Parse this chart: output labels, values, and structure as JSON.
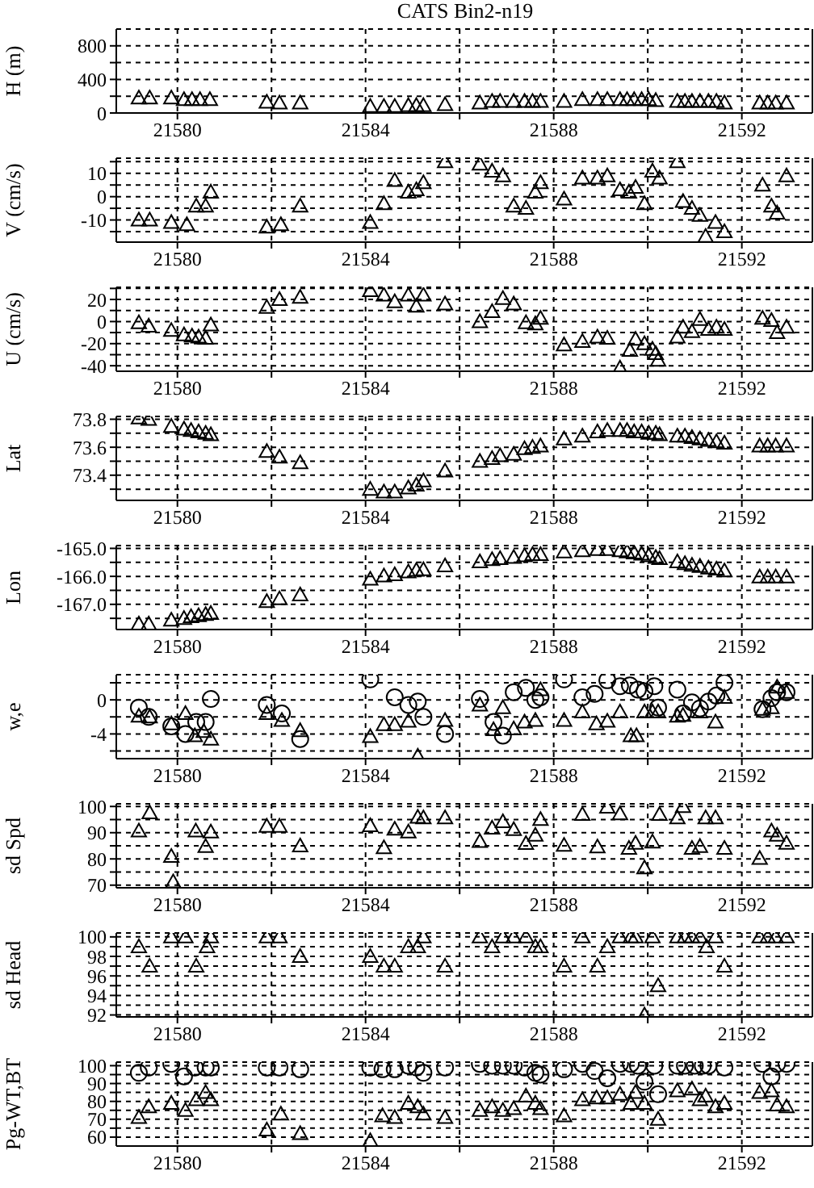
{
  "chart_data": [
    {
      "type": "scatter",
      "title": "CATS Bin2-n19",
      "ylabel": "H (m)",
      "xlim": [
        21578.7,
        21593.5
      ],
      "xticks": [
        21580,
        {
          "value": 21582,
          "label": null
        },
        21584,
        {
          "value": 21586,
          "label": null
        },
        21588,
        {
          "value": 21590,
          "label": null
        },
        21592
      ],
      "ylim": [
        0,
        1000
      ],
      "yticks": [
        0,
        {
          "value": 200,
          "label": null
        },
        400,
        {
          "value": 600,
          "label": null
        },
        800
      ],
      "grid": true,
      "marker": "triangle",
      "series": [
        {
          "color": "#000000",
          "x": [
            21579.18,
            21579.41,
            21579.87,
            21580.14,
            21580.31,
            21580.48,
            21580.69,
            21581.9,
            21582.17,
            21582.61,
            21584.1,
            21584.39,
            21584.62,
            21584.91,
            21585.08,
            21585.23,
            21585.69,
            21586.43,
            21586.69,
            21586.86,
            21587.15,
            21587.38,
            21587.55,
            21587.72,
            21588.22,
            21588.61,
            21588.93,
            21589.14,
            21589.41,
            21589.56,
            21589.71,
            21589.87,
            21590.02,
            21590.17,
            21590.63,
            21590.79,
            21590.94,
            21591.11,
            21591.29,
            21591.46,
            21591.63,
            21592.38,
            21592.55,
            21592.72,
            21592.95
          ],
          "values": [
            180,
            180,
            180,
            160,
            160,
            160,
            160,
            130,
            120,
            120,
            80,
            80,
            80,
            90,
            90,
            90,
            100,
            120,
            140,
            140,
            140,
            140,
            140,
            140,
            140,
            160,
            160,
            160,
            160,
            160,
            160,
            160,
            160,
            150,
            140,
            140,
            140,
            140,
            140,
            140,
            120,
            120,
            120,
            120,
            120
          ]
        }
      ]
    },
    {
      "type": "scatter",
      "ylabel": "V (cm/s)",
      "xlim": [
        21578.7,
        21593.5
      ],
      "xticks": [
        21580,
        {
          "value": 21582,
          "label": null
        },
        21584,
        {
          "value": 21586,
          "label": null
        },
        21588,
        {
          "value": 21590,
          "label": null
        },
        21592
      ],
      "ylim": [
        -19.5,
        16.5
      ],
      "yticks": [
        {
          "value": -15,
          "label": null
        },
        -10,
        {
          "value": -5,
          "label": null
        },
        0,
        {
          "value": 5,
          "label": null
        },
        10,
        {
          "value": 15,
          "label": null
        }
      ],
      "grid": true,
      "marker": "triangle",
      "series": [
        {
          "color": "#000000",
          "x": [
            21579.18,
            21579.41,
            21579.87,
            21580.2,
            21580.4,
            21580.6,
            21580.71,
            21581.9,
            21582.2,
            21582.61,
            21584.1,
            21584.39,
            21584.62,
            21584.91,
            21585.08,
            21585.23,
            21585.69,
            21586.43,
            21586.69,
            21586.92,
            21587.15,
            21587.41,
            21587.61,
            21587.72,
            21588.22,
            21588.61,
            21588.93,
            21589.14,
            21589.41,
            21589.6,
            21589.74,
            21589.93,
            21590.1,
            21590.25,
            21590.63,
            21590.75,
            21590.94,
            21591.11,
            21591.23,
            21591.44,
            21591.63,
            21592.44,
            21592.63,
            21592.75,
            21592.95
          ],
          "values": [
            -10,
            -10,
            -11,
            -12,
            -4,
            -4,
            2,
            -13,
            -12,
            -4,
            -11,
            -3,
            7,
            2,
            3,
            6,
            15,
            14,
            11,
            9,
            -4,
            -5,
            2,
            6,
            -1,
            8,
            8,
            9,
            3,
            2,
            4,
            -3,
            11,
            8,
            15,
            -2,
            -5,
            -8,
            -17,
            -11,
            -15,
            5,
            -4,
            -7,
            9
          ]
        }
      ]
    },
    {
      "type": "scatter",
      "ylabel": "U (cm/s)",
      "xlim": [
        21578.7,
        21593.5
      ],
      "xticks": [
        21580,
        {
          "value": 21582,
          "label": null
        },
        21584,
        {
          "value": 21586,
          "label": null
        },
        21588,
        {
          "value": 21590,
          "label": null
        },
        21592
      ],
      "ylim": [
        -45,
        31
      ],
      "yticks": [
        -40,
        {
          "value": -30,
          "label": null
        },
        -20,
        {
          "value": -10,
          "label": null
        },
        0,
        {
          "value": 10,
          "label": null
        },
        20,
        {
          "value": 30,
          "label": null
        }
      ],
      "grid": true,
      "marker": "triangle",
      "series": [
        {
          "color": "#000000",
          "x": [
            21579.18,
            21579.39,
            21579.87,
            21580.14,
            21580.31,
            21580.45,
            21580.6,
            21580.71,
            21581.9,
            21582.17,
            21582.61,
            21584.1,
            21584.39,
            21584.62,
            21584.91,
            21585.08,
            21585.23,
            21585.69,
            21586.43,
            21586.69,
            21586.92,
            21587.15,
            21587.41,
            21587.61,
            21587.72,
            21588.22,
            21588.61,
            21588.93,
            21589.14,
            21589.41,
            21589.62,
            21589.74,
            21589.93,
            21590.1,
            21590.17,
            21590.22,
            21590.63,
            21590.75,
            21590.94,
            21591.11,
            21591.29,
            21591.46,
            21591.63,
            21592.44,
            21592.63,
            21592.75,
            21592.95
          ],
          "values": [
            -1,
            -4,
            -8,
            -12,
            -13,
            -14,
            -15,
            -3,
            13,
            20,
            22,
            28,
            24,
            18,
            24,
            14,
            24,
            16,
            0,
            9,
            21,
            16,
            -1,
            -2,
            3,
            -21,
            -18,
            -14,
            -15,
            -42,
            -26,
            -16,
            -20,
            -25,
            -29,
            -35,
            -14,
            -5,
            -9,
            2,
            -7,
            -5,
            -7,
            3,
            1,
            -10,
            -5
          ]
        }
      ]
    },
    {
      "type": "scatter",
      "ylabel": "Lat",
      "xlim": [
        21578.7,
        21593.5
      ],
      "xticks": [
        21580,
        {
          "value": 21582,
          "label": null
        },
        21584,
        {
          "value": 21586,
          "label": null
        },
        21588,
        {
          "value": 21590,
          "label": null
        },
        21592
      ],
      "ylim": [
        73.22,
        73.82
      ],
      "yticks": [
        {
          "value": 73.3,
          "label": null
        },
        73.4,
        {
          "value": 73.5,
          "label": null
        },
        73.6,
        {
          "value": 73.7,
          "label": null
        },
        73.8
      ],
      "grid": true,
      "marker": "triangle",
      "series": [
        {
          "color": "#000000",
          "x": [
            21579.18,
            21579.39,
            21579.87,
            21580.14,
            21580.29,
            21580.45,
            21580.6,
            21580.71,
            21581.9,
            21582.17,
            21582.61,
            21584.1,
            21584.39,
            21584.62,
            21584.91,
            21585.08,
            21585.23,
            21585.69,
            21586.43,
            21586.69,
            21586.86,
            21587.15,
            21587.38,
            21587.55,
            21587.72,
            21588.22,
            21588.61,
            21588.93,
            21589.14,
            21589.41,
            21589.56,
            21589.71,
            21589.87,
            21590.02,
            21590.17,
            21590.25,
            21590.63,
            21590.79,
            21590.94,
            21591.11,
            21591.29,
            21591.46,
            21591.63,
            21592.38,
            21592.55,
            21592.72,
            21592.95
          ],
          "values": [
            73.81,
            73.8,
            73.75,
            73.73,
            73.72,
            73.71,
            73.7,
            73.69,
            73.57,
            73.53,
            73.49,
            73.3,
            73.28,
            73.28,
            73.31,
            73.33,
            73.36,
            73.43,
            73.5,
            73.52,
            73.54,
            73.55,
            73.59,
            73.6,
            73.61,
            73.66,
            73.68,
            73.71,
            73.72,
            73.72,
            73.72,
            73.71,
            73.71,
            73.7,
            73.7,
            73.69,
            73.68,
            73.68,
            73.67,
            73.66,
            73.65,
            73.64,
            73.63,
            73.61,
            73.61,
            73.61,
            73.61
          ]
        }
      ]
    },
    {
      "type": "scatter",
      "ylabel": "Lon",
      "xlim": [
        21578.7,
        21593.5
      ],
      "xticks": [
        21580,
        {
          "value": 21582,
          "label": null
        },
        21584,
        {
          "value": 21586,
          "label": null
        },
        21588,
        {
          "value": 21590,
          "label": null
        },
        21592
      ],
      "ylim": [
        -167.9,
        -164.9
      ],
      "yticks": [
        {
          "value": -167.5,
          "label": null
        },
        {
          "value": -167,
          "label": "-167.0"
        },
        {
          "value": -166.5,
          "label": null
        },
        {
          "value": -166,
          "label": "-166.0"
        },
        {
          "value": -165.5,
          "label": null
        },
        {
          "value": -165,
          "label": "-165.0"
        }
      ],
      "grid": true,
      "marker": "triangle",
      "series": [
        {
          "color": "#000000",
          "x": [
            21579.18,
            21579.39,
            21579.87,
            21580.14,
            21580.29,
            21580.45,
            21580.6,
            21580.71,
            21581.9,
            21582.17,
            21582.61,
            21584.1,
            21584.39,
            21584.62,
            21584.91,
            21585.08,
            21585.23,
            21585.69,
            21586.43,
            21586.69,
            21586.86,
            21587.15,
            21587.38,
            21587.55,
            21587.72,
            21588.22,
            21588.61,
            21588.93,
            21589.14,
            21589.41,
            21589.56,
            21589.71,
            21589.87,
            21590.02,
            21590.17,
            21590.25,
            21590.63,
            21590.79,
            21590.94,
            21591.11,
            21591.29,
            21591.46,
            21591.63,
            21592.38,
            21592.55,
            21592.72,
            21592.95
          ],
          "values": [
            -167.7,
            -167.7,
            -167.56,
            -167.5,
            -167.44,
            -167.4,
            -167.36,
            -167.32,
            -166.9,
            -166.8,
            -166.66,
            -166.1,
            -165.98,
            -165.94,
            -165.84,
            -165.78,
            -165.76,
            -165.62,
            -165.48,
            -165.4,
            -165.36,
            -165.32,
            -165.26,
            -165.22,
            -165.22,
            -165.12,
            -165.08,
            -165.04,
            -165.04,
            -165.08,
            -165.12,
            -165.16,
            -165.2,
            -165.26,
            -165.32,
            -165.36,
            -165.48,
            -165.54,
            -165.6,
            -165.64,
            -165.7,
            -165.74,
            -165.8,
            -166.02,
            -166.02,
            -166.02,
            -166.02
          ]
        }
      ]
    },
    {
      "type": "scatter",
      "ylabel": "w,e",
      "xlim": [
        21578.7,
        21593.5
      ],
      "xticks": [
        21580,
        {
          "value": 21582,
          "label": null
        },
        21584,
        {
          "value": 21586,
          "label": null
        },
        21588,
        {
          "value": 21590,
          "label": null
        },
        21592
      ],
      "ylim": [
        -6.9,
        2.95
      ],
      "yticks": [
        {
          "value": -6,
          "label": null
        },
        -4,
        {
          "value": -2,
          "label": null
        },
        0,
        {
          "value": 2,
          "label": null
        }
      ],
      "grid": true,
      "series": [
        {
          "color": "#000000",
          "marker": "triangle",
          "x": [
            21579.18,
            21579.41,
            21579.87,
            21580.17,
            21580.37,
            21580.56,
            21580.71,
            21581.9,
            21582.22,
            21582.61,
            21584.1,
            21584.39,
            21584.62,
            21584.91,
            21585.11,
            21585.69,
            21586.43,
            21586.72,
            21586.92,
            21587.15,
            21587.38,
            21587.61,
            21587.72,
            21588.22,
            21588.61,
            21588.91,
            21589.14,
            21589.41,
            21589.64,
            21589.76,
            21589.93,
            21590.1,
            21590.22,
            21590.63,
            21590.75,
            21591.11,
            21591.44,
            21591.63,
            21592.44,
            21592.63,
            21592.75,
            21592.95
          ],
          "values": [
            -1.9,
            -2.0,
            -2.8,
            -1.6,
            -4.2,
            -3.7,
            -4.6,
            -1.6,
            -2.4,
            -3.6,
            -4.3,
            -2.9,
            -2.9,
            -2.5,
            -6.6,
            -2.4,
            -0.6,
            -3.5,
            -0.9,
            -3.4,
            -2.6,
            -2.4,
            1.2,
            -2.4,
            -1.4,
            -2.8,
            -2.5,
            -1.4,
            -4.2,
            -4.2,
            -1.4,
            -1.4,
            -1.4,
            -1.9,
            -1.8,
            -1.4,
            -2.6,
            0.3,
            -1.1,
            -0.9,
            1.5,
            0.9
          ]
        },
        {
          "color": "#000000",
          "marker": "circle",
          "x": [
            21579.18,
            21579.39,
            21579.87,
            21580.17,
            21580.4,
            21580.6,
            21580.71,
            21581.9,
            21582.22,
            21582.61,
            21584.1,
            21584.62,
            21584.91,
            21585.11,
            21585.23,
            21585.69,
            21586.43,
            21586.72,
            21586.92,
            21587.15,
            21587.41,
            21587.61,
            21587.72,
            21588.22,
            21588.61,
            21588.87,
            21589.14,
            21589.41,
            21589.62,
            21589.79,
            21589.93,
            21590.14,
            21590.22,
            21590.63,
            21590.75,
            21590.94,
            21591.11,
            21591.29,
            21591.46,
            21591.63,
            21592.44,
            21592.63,
            21592.75,
            21592.95
          ],
          "values": [
            -0.9,
            -2.0,
            -3.1,
            -4.0,
            -2.6,
            -2.6,
            0.1,
            -0.6,
            -1.6,
            -4.6,
            2.4,
            0.3,
            -0.6,
            -0.2,
            -2.0,
            -4.0,
            0.1,
            -2.6,
            -4.2,
            0.9,
            1.4,
            0.0,
            0.3,
            2.4,
            0.3,
            0.7,
            2.3,
            1.6,
            1.7,
            1.2,
            1.0,
            1.6,
            -0.9,
            1.2,
            -1.6,
            -0.3,
            -1.0,
            -0.2,
            0.5,
            2.0,
            -1.1,
            0.2,
            0.9,
            0.9
          ]
        }
      ]
    },
    {
      "type": "scatter",
      "ylabel": "sd Spd",
      "xlim": [
        21578.7,
        21593.5
      ],
      "xticks": [
        21580,
        {
          "value": 21582,
          "label": null
        },
        21584,
        {
          "value": 21586,
          "label": null
        },
        21588,
        {
          "value": 21590,
          "label": null
        },
        21592
      ],
      "ylim": [
        69,
        101
      ],
      "yticks": [
        70,
        {
          "value": 75,
          "label": null
        },
        80,
        {
          "value": 85,
          "label": null
        },
        90,
        {
          "value": 95,
          "label": null
        },
        100
      ],
      "grid": true,
      "marker": "triangle",
      "series": [
        {
          "color": "#000000",
          "x": [
            21579.18,
            21579.41,
            21579.87,
            21579.91,
            21580.39,
            21580.6,
            21580.71,
            21581.9,
            21582.17,
            21582.61,
            21584.1,
            21584.39,
            21584.62,
            21584.91,
            21585.11,
            21585.23,
            21585.69,
            21586.43,
            21586.69,
            21586.92,
            21587.15,
            21587.41,
            21587.61,
            21587.72,
            21588.22,
            21588.61,
            21588.93,
            21589.14,
            21589.41,
            21589.6,
            21589.74,
            21589.93,
            21590.1,
            21590.25,
            21590.63,
            21590.75,
            21590.94,
            21591.11,
            21591.23,
            21591.44,
            21591.63,
            21592.38,
            21592.63,
            21592.75,
            21592.95
          ],
          "values": [
            90.7,
            97.6,
            81.0,
            71.3,
            90.7,
            84.8,
            90.3,
            92.5,
            92.5,
            85.0,
            92.7,
            84.3,
            91.4,
            90.3,
            95.9,
            95.7,
            95.7,
            86.7,
            91.8,
            94.2,
            91.2,
            85.9,
            89.1,
            95.1,
            85.2,
            97.0,
            84.6,
            99.8,
            97.2,
            84.1,
            86.0,
            76.6,
            86.5,
            97.0,
            95.7,
            100.0,
            84.1,
            84.8,
            95.7,
            95.7,
            84.1,
            80.2,
            90.7,
            89.1,
            86.0
          ]
        }
      ]
    },
    {
      "type": "scatter",
      "ylabel": "sd Head",
      "xlim": [
        21578.7,
        21593.5
      ],
      "xticks": [
        21580,
        {
          "value": 21582,
          "label": null
        },
        21584,
        {
          "value": 21586,
          "label": null
        },
        21588,
        {
          "value": 21590,
          "label": null
        },
        21592
      ],
      "ylim": [
        91.8,
        100.4
      ],
      "yticks": [
        92,
        {
          "value": 93,
          "label": null
        },
        94,
        {
          "value": 95,
          "label": null
        },
        96,
        {
          "value": 97,
          "label": null
        },
        98,
        {
          "value": 99,
          "label": null
        },
        100
      ],
      "grid": true,
      "marker": "triangle",
      "series": [
        {
          "color": "#000000",
          "x": [
            21579.18,
            21579.41,
            21579.87,
            21580.17,
            21580.4,
            21580.63,
            21580.71,
            21581.9,
            21582.17,
            21582.61,
            21584.1,
            21584.39,
            21584.62,
            21584.91,
            21585.11,
            21585.23,
            21585.69,
            21586.43,
            21586.69,
            21586.92,
            21587.15,
            21587.41,
            21587.61,
            21587.72,
            21588.22,
            21588.61,
            21588.93,
            21589.14,
            21589.41,
            21589.64,
            21589.74,
            21589.93,
            21590.1,
            21590.22,
            21590.63,
            21590.79,
            21590.94,
            21591.11,
            21591.25,
            21591.44,
            21591.63,
            21592.38,
            21592.55,
            21592.72,
            21592.95
          ],
          "values": [
            99,
            97,
            100,
            100,
            97,
            99,
            100,
            100,
            100,
            98,
            98,
            97,
            97,
            99,
            99,
            100,
            97,
            100,
            99,
            100,
            100,
            100,
            99,
            99,
            97,
            100,
            97,
            99,
            100,
            100,
            100,
            92,
            100,
            95,
            100,
            100,
            100,
            100,
            99,
            100,
            97,
            100,
            100,
            100,
            100
          ]
        }
      ]
    },
    {
      "type": "scatter",
      "ylabel": "Pg-WT,BT",
      "xlim": [
        21578.7,
        21593.5
      ],
      "xticks": [
        21580,
        {
          "value": 21582,
          "label": null
        },
        21584,
        {
          "value": 21586,
          "label": null
        },
        21588,
        {
          "value": 21590,
          "label": null
        },
        21592
      ],
      "ylim": [
        55,
        102
      ],
      "yticks": [
        60,
        {
          "value": 65,
          "label": null
        },
        70,
        {
          "value": 75,
          "label": null
        },
        80,
        {
          "value": 85,
          "label": null
        },
        90,
        {
          "value": 95,
          "label": null
        },
        100
      ],
      "grid": true,
      "series": [
        {
          "color": "#000000",
          "marker": "circle",
          "x": [
            21579.18,
            21579.39,
            21579.87,
            21580.14,
            21580.37,
            21580.6,
            21580.71,
            21581.9,
            21582.17,
            21582.61,
            21584.1,
            21584.36,
            21584.62,
            21584.91,
            21585.08,
            21585.23,
            21585.69,
            21586.43,
            21586.69,
            21586.92,
            21587.15,
            21587.38,
            21587.61,
            21587.72,
            21588.22,
            21588.61,
            21588.87,
            21589.14,
            21589.41,
            21589.64,
            21589.79,
            21589.93,
            21590.14,
            21590.22,
            21590.63,
            21590.79,
            21591.0,
            21591.17,
            21591.29,
            21591.63,
            21592.44,
            21592.63,
            21592.75,
            21592.95
          ],
          "values": [
            96,
            99,
            101,
            94,
            99,
            99,
            99,
            99,
            99,
            98,
            99,
            98,
            98,
            100,
            99,
            96,
            99,
            101,
            100,
            100,
            100,
            99,
            96,
            95,
            98,
            101,
            97,
            93,
            101,
            101,
            100,
            91,
            100,
            84,
            100,
            100,
            100,
            100,
            100,
            99,
            101,
            94,
            101,
            101
          ]
        },
        {
          "color": "#000000",
          "marker": "triangle",
          "x": [
            21579.18,
            21579.39,
            21579.87,
            21580.17,
            21580.4,
            21580.6,
            21580.71,
            21581.9,
            21582.2,
            21582.61,
            21584.1,
            21584.36,
            21584.62,
            21584.91,
            21585.11,
            21585.23,
            21585.69,
            21586.43,
            21586.69,
            21586.92,
            21587.15,
            21587.41,
            21587.61,
            21587.72,
            21588.22,
            21588.61,
            21588.91,
            21589.14,
            21589.41,
            21589.64,
            21589.74,
            21589.93,
            21590.22,
            21590.63,
            21590.94,
            21591.11,
            21591.23,
            21591.44,
            21591.63,
            21592.38,
            21592.63,
            21592.75,
            21592.95
          ],
          "values": [
            71,
            77,
            79,
            75,
            81,
            85,
            81,
            64,
            73,
            62,
            58,
            72,
            71,
            79,
            77,
            73,
            71,
            75,
            77,
            75,
            76,
            83,
            79,
            76,
            72,
            81,
            82,
            82,
            84,
            79,
            85,
            79,
            70,
            86,
            87,
            81,
            83,
            77,
            79,
            85,
            86,
            78,
            77
          ]
        }
      ]
    }
  ]
}
